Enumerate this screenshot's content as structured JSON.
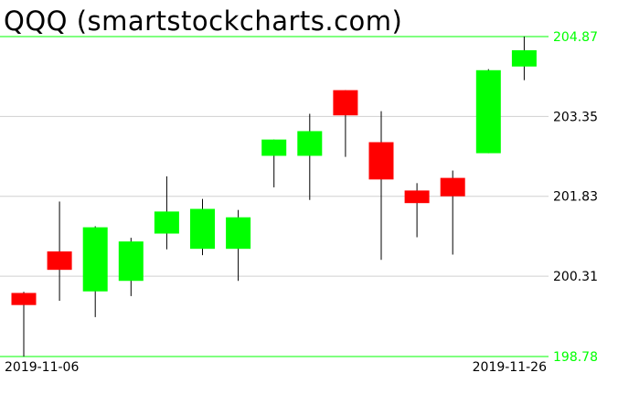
{
  "chart_data": {
    "type": "candlestick",
    "title": "QQQ (smartstockcharts.com)",
    "ylim": [
      198.78,
      204.87
    ],
    "yticks": [
      204.87,
      203.35,
      201.83,
      200.31,
      198.78
    ],
    "ytick_labels": [
      "204.87",
      "203.35",
      "201.83",
      "200.31",
      "198.78"
    ],
    "xtick_labels": [
      "2019-11-06",
      "2019-11-26"
    ],
    "grid": true,
    "colors": {
      "up": "#00ff00",
      "down": "#ff0000",
      "grid": "#d0d0d0",
      "limit_lines": "#00ff00",
      "wick": "#000000"
    },
    "candles": [
      {
        "o": 199.99,
        "h": 200.01,
        "l": 198.78,
        "c": 199.76
      },
      {
        "o": 200.78,
        "h": 201.73,
        "l": 199.84,
        "c": 200.43
      },
      {
        "o": 200.02,
        "h": 201.26,
        "l": 199.53,
        "c": 201.24
      },
      {
        "o": 200.22,
        "h": 201.04,
        "l": 199.93,
        "c": 200.97
      },
      {
        "o": 201.12,
        "h": 202.21,
        "l": 200.82,
        "c": 201.54
      },
      {
        "o": 200.83,
        "h": 201.78,
        "l": 200.71,
        "c": 201.59
      },
      {
        "o": 200.83,
        "h": 201.57,
        "l": 200.22,
        "c": 201.43
      },
      {
        "o": 202.6,
        "h": 202.91,
        "l": 202.0,
        "c": 202.91
      },
      {
        "o": 202.6,
        "h": 203.4,
        "l": 201.76,
        "c": 203.07
      },
      {
        "o": 203.85,
        "h": 203.85,
        "l": 202.58,
        "c": 203.37
      },
      {
        "o": 202.86,
        "h": 203.45,
        "l": 200.62,
        "c": 202.15
      },
      {
        "o": 201.94,
        "h": 202.08,
        "l": 201.05,
        "c": 201.7
      },
      {
        "o": 202.18,
        "h": 202.32,
        "l": 200.72,
        "c": 201.83
      },
      {
        "o": 202.65,
        "h": 204.25,
        "l": 202.65,
        "c": 204.23
      },
      {
        "o": 204.3,
        "h": 204.87,
        "l": 204.04,
        "c": 204.61
      }
    ]
  }
}
